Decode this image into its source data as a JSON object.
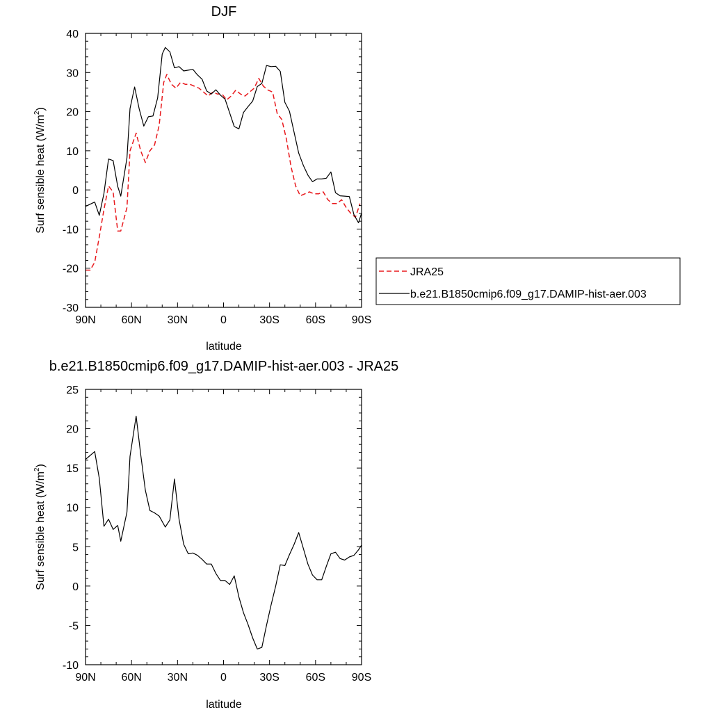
{
  "chart_data": [
    {
      "type": "line",
      "title": "DJF",
      "xlabel": "latitude",
      "ylabel": "Surf sensible heat (W/m",
      "ylabel_sup": "2",
      "ylabel_close": ")",
      "xlim": [
        90,
        -90
      ],
      "ylim": [
        -30,
        40
      ],
      "xticks": [
        {
          "value": 90,
          "label": "90N"
        },
        {
          "value": 60,
          "label": "60N"
        },
        {
          "value": 30,
          "label": "30N"
        },
        {
          "value": 0,
          "label": "0"
        },
        {
          "value": -30,
          "label": "30S"
        },
        {
          "value": -60,
          "label": "60S"
        },
        {
          "value": -90,
          "label": "90S"
        }
      ],
      "yticks": [
        {
          "value": 40,
          "label": "40"
        },
        {
          "value": 30,
          "label": "30"
        },
        {
          "value": 20,
          "label": "20"
        },
        {
          "value": 10,
          "label": "10"
        },
        {
          "value": 0,
          "label": "0"
        },
        {
          "value": -10,
          "label": "-10"
        },
        {
          "value": -20,
          "label": "-20"
        },
        {
          "value": -30,
          "label": "-30"
        }
      ],
      "legend_position": "right",
      "grid": false,
      "series": [
        {
          "name": "JRA25",
          "color": "#e8191d",
          "dash": "dashed",
          "x": [
            90,
            87,
            84,
            81,
            78,
            75,
            72,
            69,
            67,
            63,
            61,
            57,
            54,
            51,
            48,
            45,
            42,
            39,
            37,
            34,
            31,
            28,
            25,
            22,
            19,
            16,
            13,
            10,
            7,
            4,
            1,
            -2,
            -5,
            -8,
            -11,
            -14,
            -17,
            -20,
            -23,
            -26,
            -29,
            -32,
            -35,
            -38,
            -41,
            -44,
            -47,
            -50,
            -53,
            -56,
            -59,
            -62,
            -65,
            -68,
            -71,
            -74,
            -77,
            -80,
            -83,
            -86,
            -89
          ],
          "y": [
            -20.5,
            -20.5,
            -18.5,
            -12,
            -5,
            1,
            -0.5,
            -10.5,
            -10.5,
            -4.5,
            10,
            14.5,
            10,
            7,
            10,
            11.5,
            16.5,
            27.5,
            29.5,
            27,
            26,
            27.5,
            27,
            27,
            26.5,
            26,
            25,
            24,
            25,
            24.5,
            24.5,
            23,
            24,
            25.5,
            24.5,
            24,
            25,
            26,
            28.5,
            26.5,
            25.5,
            25,
            19.5,
            18,
            13,
            6,
            1,
            -1.5,
            -1,
            -0.5,
            -1,
            -1,
            -0.5,
            -2.5,
            -3.5,
            -3.5,
            -2.5,
            -4.5,
            -6,
            -7,
            -3.5
          ]
        },
        {
          "name": "b.e21.B1850cmip6.f09_g17.DAMIP-hist-aer.003",
          "color": "#000000",
          "dash": "solid",
          "x": [
            90,
            84,
            81,
            78,
            75,
            72,
            69,
            67,
            63,
            61,
            58,
            55,
            52,
            49,
            46,
            43,
            40,
            38,
            35,
            32,
            29,
            26,
            23,
            20,
            17,
            14,
            11,
            8,
            5,
            2,
            -1,
            -4,
            -7,
            -10,
            -13,
            -16,
            -19,
            -22,
            -25,
            -28,
            -31,
            -34,
            -37,
            -40,
            -43,
            -46,
            -49,
            -52,
            -55,
            -58,
            -61,
            -64,
            -67,
            -70,
            -73,
            -76,
            -79,
            -82,
            -85,
            -88,
            -90
          ],
          "y": [
            -4.2,
            -3.1,
            -6.5,
            -0.9,
            7.9,
            7.5,
            0.9,
            -1.6,
            8.2,
            20.8,
            26.3,
            20.7,
            16.3,
            18.7,
            18.9,
            23.5,
            34.7,
            36.4,
            35.3,
            31.2,
            31.5,
            30.4,
            30.6,
            30.8,
            29.4,
            28.3,
            25.3,
            24.5,
            25.6,
            24.2,
            23.2,
            19.7,
            16.2,
            15.6,
            19.8,
            21.3,
            22.7,
            26.4,
            27.2,
            31.8,
            31.5,
            31.6,
            30.3,
            22.4,
            20.1,
            14.7,
            9.4,
            6.3,
            3.8,
            2.1,
            2.8,
            2.8,
            3.0,
            4.6,
            -0.7,
            -1.5,
            -1.6,
            -1.7,
            -6.3,
            -8.4,
            -5.9
          ]
        }
      ]
    },
    {
      "type": "line",
      "title": "b.e21.B1850cmip6.f09_g17.DAMIP-hist-aer.003 - JRA25",
      "xlabel": "latitude",
      "ylabel": "Surf sensible heat (W/m",
      "ylabel_sup": "2",
      "ylabel_close": ")",
      "xlim": [
        90,
        -90
      ],
      "ylim": [
        -10,
        25
      ],
      "xticks": [
        {
          "value": 90,
          "label": "90N"
        },
        {
          "value": 60,
          "label": "60N"
        },
        {
          "value": 30,
          "label": "30N"
        },
        {
          "value": 0,
          "label": "0"
        },
        {
          "value": -30,
          "label": "30S"
        },
        {
          "value": -60,
          "label": "60S"
        },
        {
          "value": -90,
          "label": "90S"
        }
      ],
      "yticks": [
        {
          "value": 25,
          "label": "25"
        },
        {
          "value": 20,
          "label": "20"
        },
        {
          "value": 15,
          "label": "15"
        },
        {
          "value": 10,
          "label": "10"
        },
        {
          "value": 5,
          "label": "5"
        },
        {
          "value": 0,
          "label": "0"
        },
        {
          "value": -5,
          "label": "-5"
        },
        {
          "value": -10,
          "label": "-10"
        }
      ],
      "grid": false,
      "series": [
        {
          "color": "#000000",
          "dash": "solid",
          "x": [
            90,
            84,
            81,
            78,
            75,
            72,
            69,
            67,
            63,
            61,
            57,
            54,
            51,
            48,
            45,
            42,
            40,
            38,
            35,
            32,
            29,
            26,
            23,
            20,
            17,
            14,
            11,
            8,
            5,
            2,
            -1,
            -4,
            -7,
            -10,
            -13,
            -16,
            -19,
            -22,
            -25,
            -28,
            -31,
            -34,
            -37,
            -40,
            -43,
            -46,
            -49,
            -52,
            -55,
            -58,
            -61,
            -64,
            -67,
            -70,
            -73,
            -76,
            -79,
            -82,
            -85,
            -88,
            -90
          ],
          "y": [
            16.1,
            17.1,
            13.7,
            7.6,
            8.5,
            7.2,
            7.7,
            5.7,
            9.4,
            16.5,
            21.6,
            16.7,
            12.2,
            9.6,
            9.3,
            8.9,
            8.2,
            7.5,
            8.4,
            13.6,
            8.5,
            5.3,
            4.1,
            4.2,
            3.9,
            3.4,
            2.8,
            2.8,
            1.6,
            0.7,
            0.7,
            0.2,
            1.3,
            -1.4,
            -3.4,
            -4.9,
            -6.6,
            -8.0,
            -7.8,
            -5.0,
            -2.4,
            0.0,
            2.7,
            2.6,
            4.0,
            5.3,
            6.8,
            4.8,
            2.8,
            1.4,
            0.8,
            0.8,
            2.5,
            4.1,
            4.3,
            3.5,
            3.3,
            3.7,
            3.9,
            4.6,
            5.2
          ]
        }
      ]
    }
  ]
}
